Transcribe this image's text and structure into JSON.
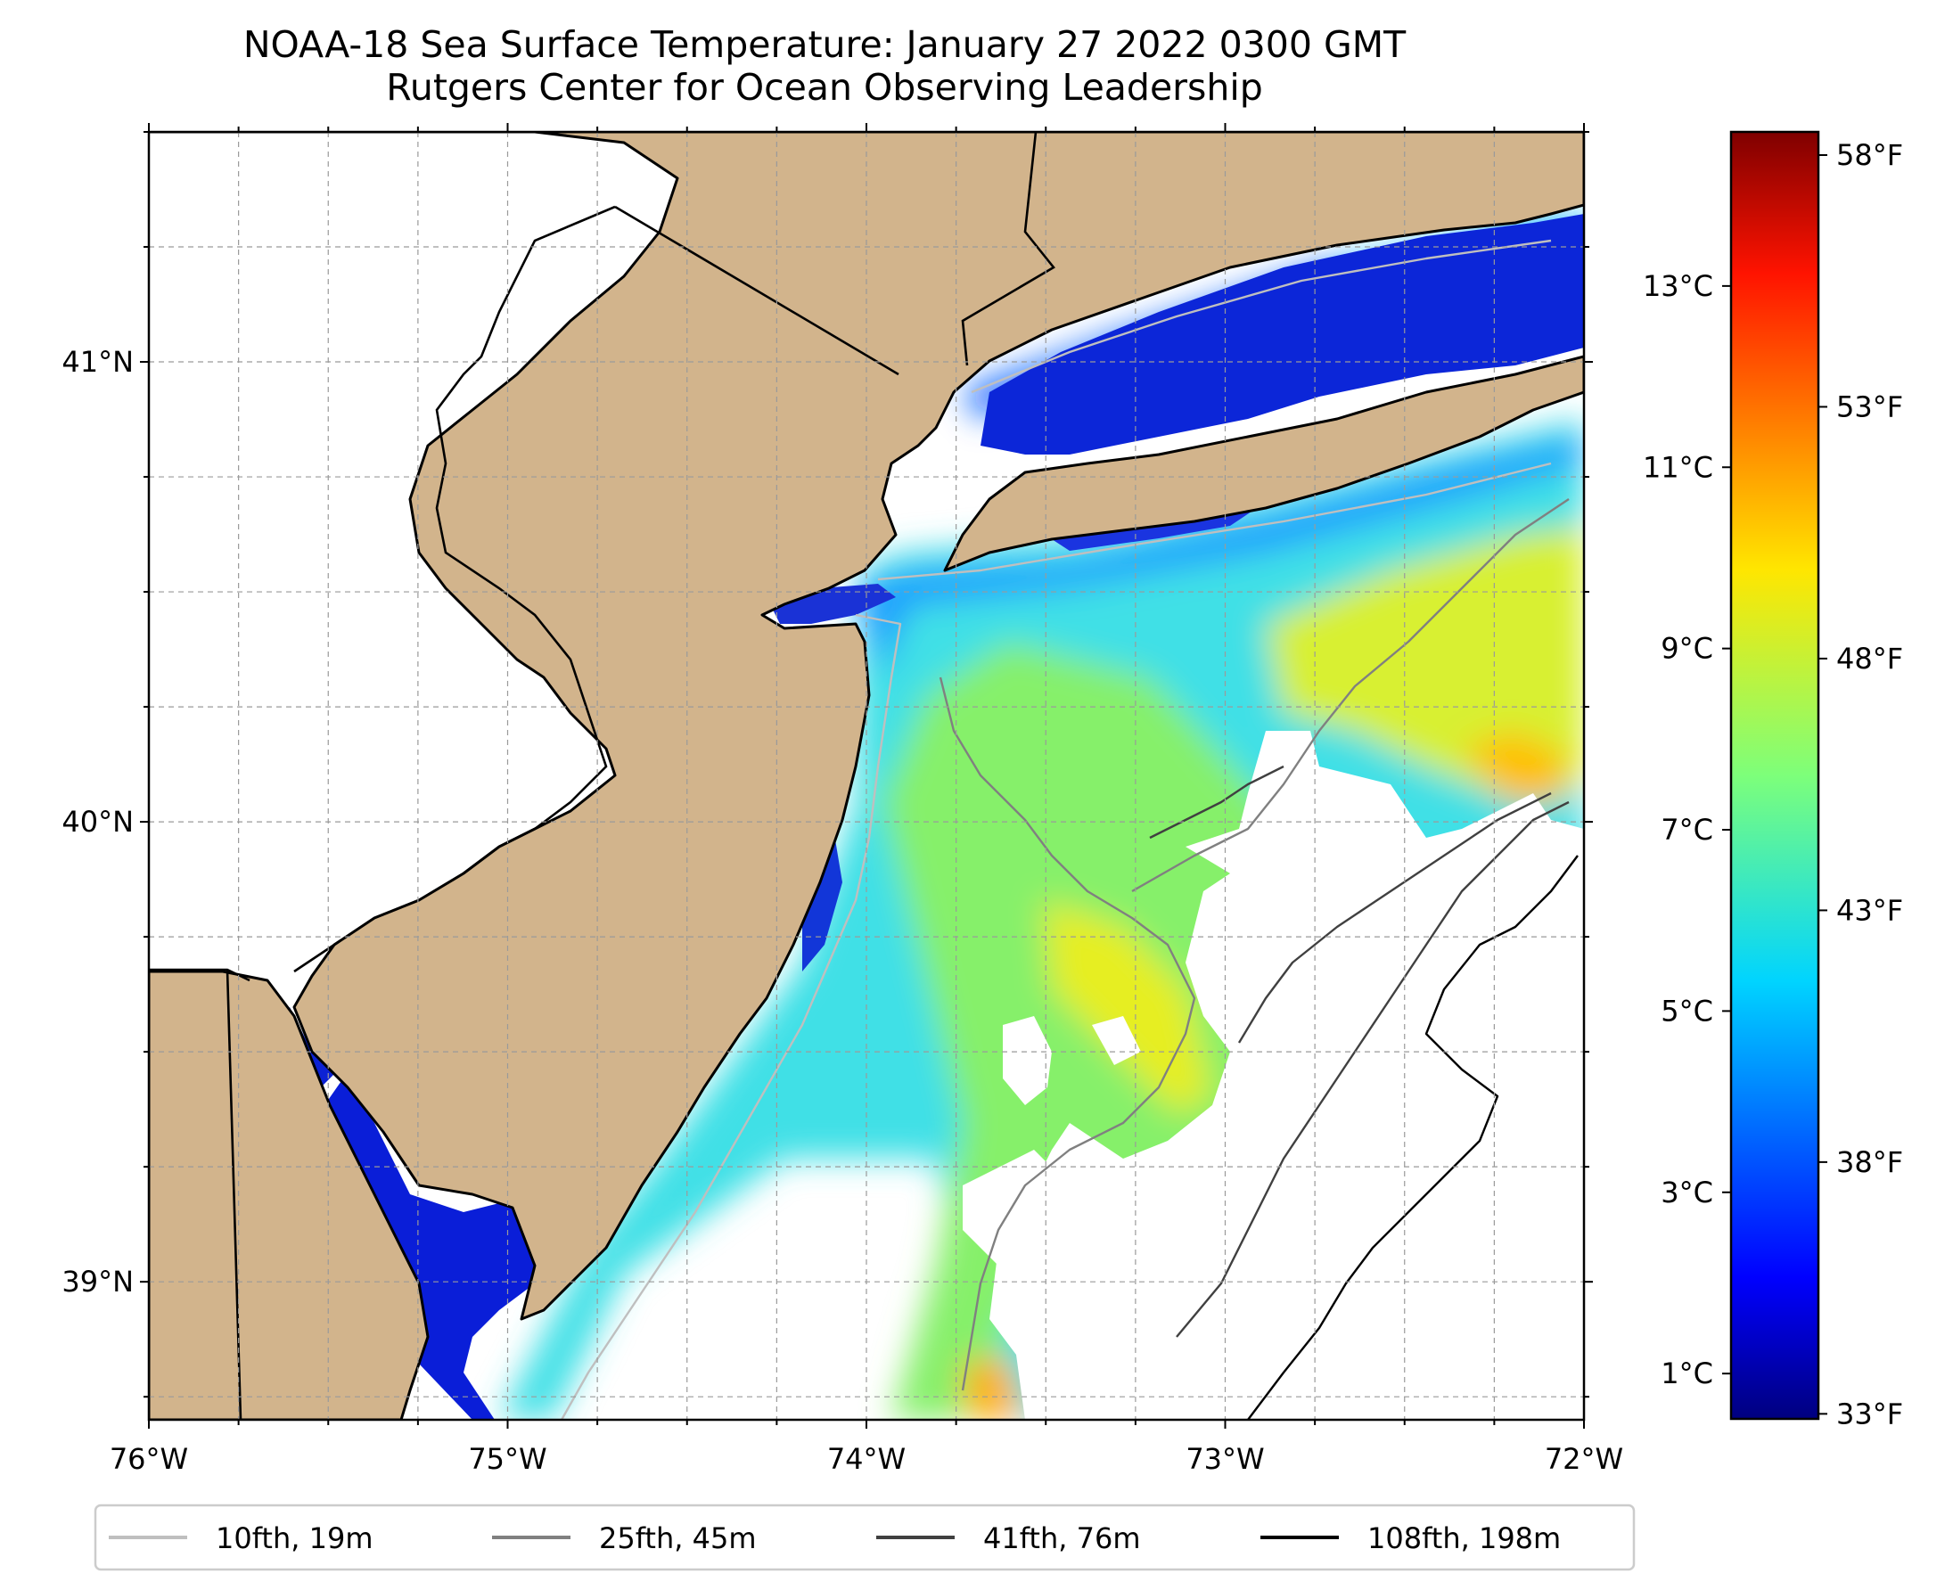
{
  "title": {
    "line1": "NOAA-18 Sea Surface Temperature: January 27 2022 0300 GMT",
    "line2": "Rutgers Center for Ocean Observing Leadership"
  },
  "map": {
    "extent": {
      "lon_min": -76.0,
      "lon_max": -72.0,
      "lat_min": 38.7,
      "lat_max": 41.5
    },
    "gridlines": true,
    "land_color": "#d2b48c",
    "lon_ticks": [
      {
        "value": -76,
        "label": "76°W"
      },
      {
        "value": -75,
        "label": "75°W"
      },
      {
        "value": -74,
        "label": "74°W"
      },
      {
        "value": -73,
        "label": "73°W"
      },
      {
        "value": -72,
        "label": "72°W"
      }
    ],
    "lat_ticks": [
      {
        "value": 41,
        "label": "41°N"
      },
      {
        "value": 40,
        "label": "40°N"
      },
      {
        "value": 39,
        "label": "39°N"
      }
    ]
  },
  "colorbar": {
    "colormap": "jet",
    "range_celsius": [
      0.5,
      14.7
    ],
    "celsius_ticks": [
      {
        "value": 1,
        "label": "1°C"
      },
      {
        "value": 3,
        "label": "3°C"
      },
      {
        "value": 5,
        "label": "5°C"
      },
      {
        "value": 7,
        "label": "7°C"
      },
      {
        "value": 9,
        "label": "9°C"
      },
      {
        "value": 11,
        "label": "11°C"
      },
      {
        "value": 13,
        "label": "13°C"
      }
    ],
    "fahrenheit_ticks": [
      {
        "value": 33,
        "label": "33°F"
      },
      {
        "value": 38,
        "label": "38°F"
      },
      {
        "value": 43,
        "label": "43°F"
      },
      {
        "value": 48,
        "label": "48°F"
      },
      {
        "value": 53,
        "label": "53°F"
      },
      {
        "value": 58,
        "label": "58°F"
      }
    ]
  },
  "legend": {
    "placement": "bottom",
    "entries": [
      {
        "label": "10fth, 19m",
        "color": "#bfbfbf"
      },
      {
        "label": "25fth, 45m",
        "color": "#808080"
      },
      {
        "label": "41fth, 76m",
        "color": "#404040"
      },
      {
        "label": "108fth, 198m",
        "color": "#000000"
      }
    ]
  }
}
